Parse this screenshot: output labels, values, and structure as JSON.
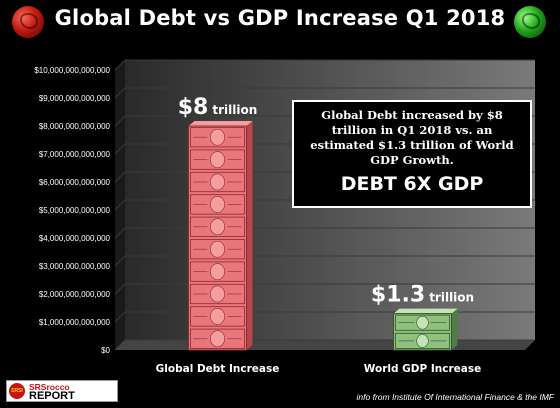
{
  "header": {
    "title": "Global Debt vs GDP Increase Q1 2018",
    "left_globe_icon": "globe-red-icon",
    "right_globe_icon": "globe-green-icon"
  },
  "chart_data": {
    "type": "bar",
    "title": "Global Debt vs GDP Increase Q1 2018",
    "categories": [
      "Global Debt Increase",
      "World GDP Increase"
    ],
    "values": [
      8000000000000,
      1300000000000
    ],
    "value_labels": [
      {
        "big": "$8",
        "unit": "trillion"
      },
      {
        "big": "$1.3",
        "unit": "trillion"
      }
    ],
    "ylim": [
      0,
      10000000000000
    ],
    "yticks": [
      0,
      1000000000000,
      2000000000000,
      3000000000000,
      4000000000000,
      5000000000000,
      6000000000000,
      7000000000000,
      8000000000000,
      9000000000000,
      10000000000000
    ],
    "ytick_labels": [
      "$0",
      "$1,000,000,000,000",
      "$2,000,000,000,000",
      "$3,000,000,000,000",
      "$4,000,000,000,000",
      "$5,000,000,000,000",
      "$6,000,000,000,000",
      "$7,000,000,000,000",
      "$8,000,000,000,000",
      "$9,000,000,000,000",
      "$10,000,000,000,000"
    ],
    "grid": true,
    "bar_style": [
      "stack-of-100-dollar-bills",
      "stack-of-100-dollar-bills"
    ],
    "colors": {
      "bar1": "#e8767a",
      "bar2": "#8fc07d",
      "grid": "#3a3a3a",
      "plot_back": "#7a7a7a"
    }
  },
  "callout": {
    "text": "Global Debt increased by $8 trillion in Q1 2018 vs. an estimated $1.3 trillion of World GDP Growth.",
    "emphasis": "DEBT 6X GDP"
  },
  "logo": {
    "badge": "SRSI",
    "top": "SRSrocco",
    "bottom": "REPORT"
  },
  "source": "info from Institute Of International Finance & the IMF"
}
